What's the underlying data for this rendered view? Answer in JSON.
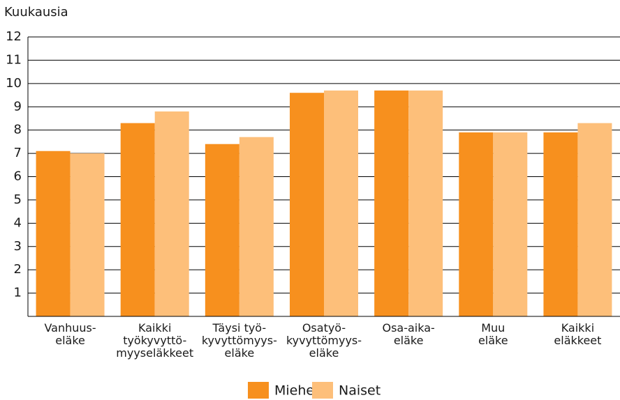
{
  "chart_data": {
    "type": "bar",
    "y_label": "Kuukausia",
    "categories": [
      "Vanhuus-\neläke",
      "Kaikki\ntyökyvyttö-\nmyyseläkkeet",
      "Täysi työ-\nkyvyttömyys-\neläke",
      "Osatyö-\nkyvyttömyys-\neläke",
      "Osa-aika-\neläke",
      "Muu\neläke",
      "Kaikki\neläkkeet"
    ],
    "series": [
      {
        "name": "Miehet",
        "color": "#f7901e",
        "values": [
          7.1,
          8.3,
          7.4,
          9.6,
          9.7,
          7.9,
          7.9
        ]
      },
      {
        "name": "Naiset",
        "color": "#fdbf7a",
        "values": [
          7.0,
          8.8,
          7.7,
          9.7,
          9.7,
          7.9,
          8.3
        ]
      }
    ],
    "ylim": [
      0,
      12
    ],
    "yticks": [
      1,
      2,
      3,
      4,
      5,
      6,
      7,
      8,
      9,
      10,
      11,
      12
    ],
    "grid": true,
    "legend": "bottom"
  }
}
